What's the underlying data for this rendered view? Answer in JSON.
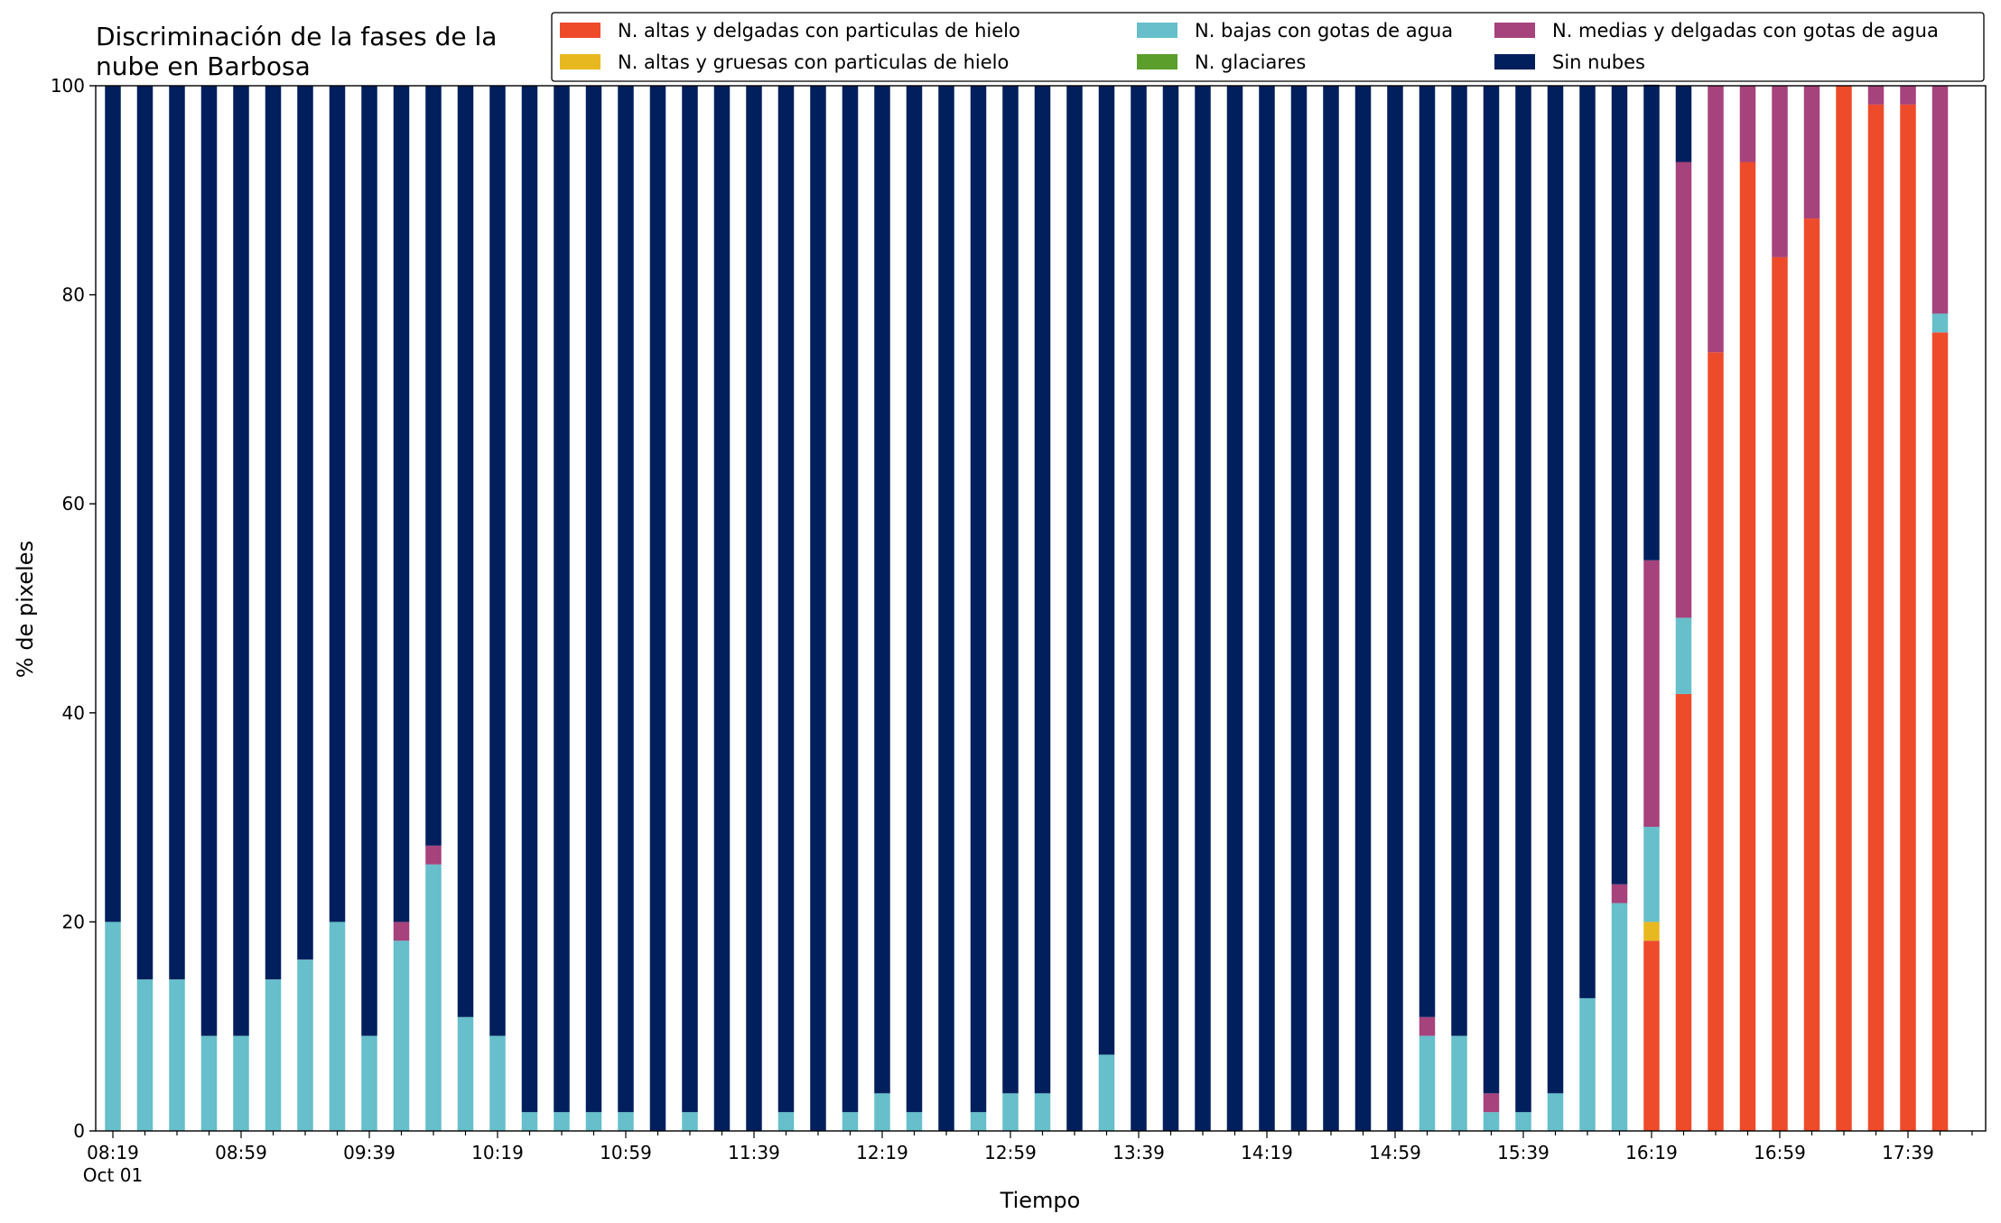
{
  "chart_data": {
    "type": "bar",
    "stacked": true,
    "title": "Discriminación de la fases de la\nnube en Barbosa",
    "xlabel": "Tiempo",
    "ylabel": "% de pixeles",
    "ylim": [
      0,
      100
    ],
    "yticks": [
      0,
      20,
      40,
      60,
      80,
      100
    ],
    "grid": false,
    "legend_position": "top-right",
    "x_tick_labels": [
      "08:19",
      "08:59",
      "09:39",
      "10:19",
      "10:59",
      "11:39",
      "12:19",
      "12:59",
      "13:39",
      "14:19",
      "14:59",
      "15:39",
      "16:19",
      "16:59",
      "17:39"
    ],
    "x_first_sublabel": "Oct 01",
    "categories": [
      "08:19",
      "08:29",
      "08:39",
      "08:49",
      "08:59",
      "09:09",
      "09:19",
      "09:29",
      "09:39",
      "09:49",
      "09:59",
      "10:09",
      "10:19",
      "10:29",
      "10:39",
      "10:49",
      "10:59",
      "11:09",
      "11:19",
      "11:29",
      "11:39",
      "11:49",
      "11:59",
      "12:09",
      "12:19",
      "12:29",
      "12:39",
      "12:49",
      "12:59",
      "13:09",
      "13:19",
      "13:29",
      "13:39",
      "13:49",
      "13:59",
      "14:09",
      "14:19",
      "14:29",
      "14:39",
      "14:49",
      "14:59",
      "15:09",
      "15:19",
      "15:29",
      "15:39",
      "15:49",
      "15:59",
      "16:09",
      "16:19",
      "16:29",
      "16:39",
      "16:49",
      "16:59",
      "17:09",
      "17:19",
      "17:29",
      "17:39",
      "17:49"
    ],
    "series": [
      {
        "name": "N. altas y delgadas con particulas de hielo",
        "color": "#ee4b2b",
        "values": [
          0,
          0,
          0,
          0,
          0,
          0,
          0,
          0,
          0,
          0,
          0,
          0,
          0,
          0,
          0,
          0,
          0,
          0,
          0,
          0,
          0,
          0,
          0,
          0,
          0,
          0,
          0,
          0,
          0,
          0,
          0,
          0,
          0,
          0,
          0,
          0,
          0,
          0,
          0,
          0,
          0,
          0,
          0,
          0,
          0,
          0,
          0,
          0,
          18.2,
          41.8,
          74.5,
          92.7,
          83.6,
          87.3,
          100,
          98.2,
          98.2,
          76.4
        ]
      },
      {
        "name": "N. altas y gruesas con particulas de hielo",
        "color": "#e8b820",
        "values": [
          0,
          0,
          0,
          0,
          0,
          0,
          0,
          0,
          0,
          0,
          0,
          0,
          0,
          0,
          0,
          0,
          0,
          0,
          0,
          0,
          0,
          0,
          0,
          0,
          0,
          0,
          0,
          0,
          0,
          0,
          0,
          0,
          0,
          0,
          0,
          0,
          0,
          0,
          0,
          0,
          0,
          0,
          0,
          0,
          0,
          0,
          0,
          0,
          1.8,
          0,
          0,
          0,
          0,
          0,
          0,
          0,
          0,
          0
        ]
      },
      {
        "name": "N. bajas con gotas de agua",
        "color": "#66bfca",
        "values": [
          20,
          14.5,
          14.5,
          9.1,
          9.1,
          14.5,
          16.4,
          20,
          9.1,
          18.2,
          25.5,
          10.9,
          9.1,
          1.8,
          1.8,
          1.8,
          1.8,
          0,
          1.8,
          0,
          0,
          1.8,
          0,
          1.8,
          3.6,
          1.8,
          0,
          1.8,
          3.6,
          3.6,
          0,
          7.3,
          0,
          0,
          0,
          0,
          0,
          0,
          0,
          0,
          0,
          9.1,
          9.1,
          1.8,
          1.8,
          3.6,
          12.7,
          21.8,
          9.1,
          7.3,
          0,
          0,
          0,
          0,
          0,
          0,
          0,
          1.8
        ]
      },
      {
        "name": "N. glaciares",
        "color": "#5b9e2c",
        "values": [
          0,
          0,
          0,
          0,
          0,
          0,
          0,
          0,
          0,
          0,
          0,
          0,
          0,
          0,
          0,
          0,
          0,
          0,
          0,
          0,
          0,
          0,
          0,
          0,
          0,
          0,
          0,
          0,
          0,
          0,
          0,
          0,
          0,
          0,
          0,
          0,
          0,
          0,
          0,
          0,
          0,
          0,
          0,
          0,
          0,
          0,
          0,
          0,
          0,
          0,
          0,
          0,
          0,
          0,
          0,
          0,
          0,
          0
        ]
      },
      {
        "name": "N. medias y delgadas con gotas de agua",
        "color": "#a6427c",
        "values": [
          0,
          0,
          0,
          0,
          0,
          0,
          0,
          0,
          0,
          1.8,
          1.8,
          0,
          0,
          0,
          0,
          0,
          0,
          0,
          0,
          0,
          0,
          0,
          0,
          0,
          0,
          0,
          0,
          0,
          0,
          0,
          0,
          0,
          0,
          0,
          0,
          0,
          0,
          0,
          0,
          0,
          0,
          1.8,
          0,
          1.8,
          0,
          0,
          0,
          1.8,
          25.5,
          43.6,
          25.5,
          7.3,
          16.4,
          12.7,
          0,
          1.8,
          1.8,
          21.8
        ]
      },
      {
        "name": "Sin nubes",
        "color": "#001f5c",
        "values": [
          80,
          85.5,
          85.5,
          90.9,
          90.9,
          85.5,
          83.6,
          80,
          90.9,
          80,
          72.7,
          89.1,
          90.9,
          98.2,
          98.2,
          98.2,
          98.2,
          100,
          98.2,
          100,
          100,
          98.2,
          100,
          98.2,
          96.4,
          98.2,
          100,
          98.2,
          96.4,
          96.4,
          100,
          92.7,
          100,
          100,
          100,
          100,
          100,
          100,
          100,
          100,
          100,
          89.1,
          90.9,
          96.4,
          98.2,
          96.4,
          87.3,
          76.4,
          45.5,
          7.3,
          0,
          0,
          0,
          0,
          0,
          0,
          0,
          0
        ]
      }
    ]
  }
}
